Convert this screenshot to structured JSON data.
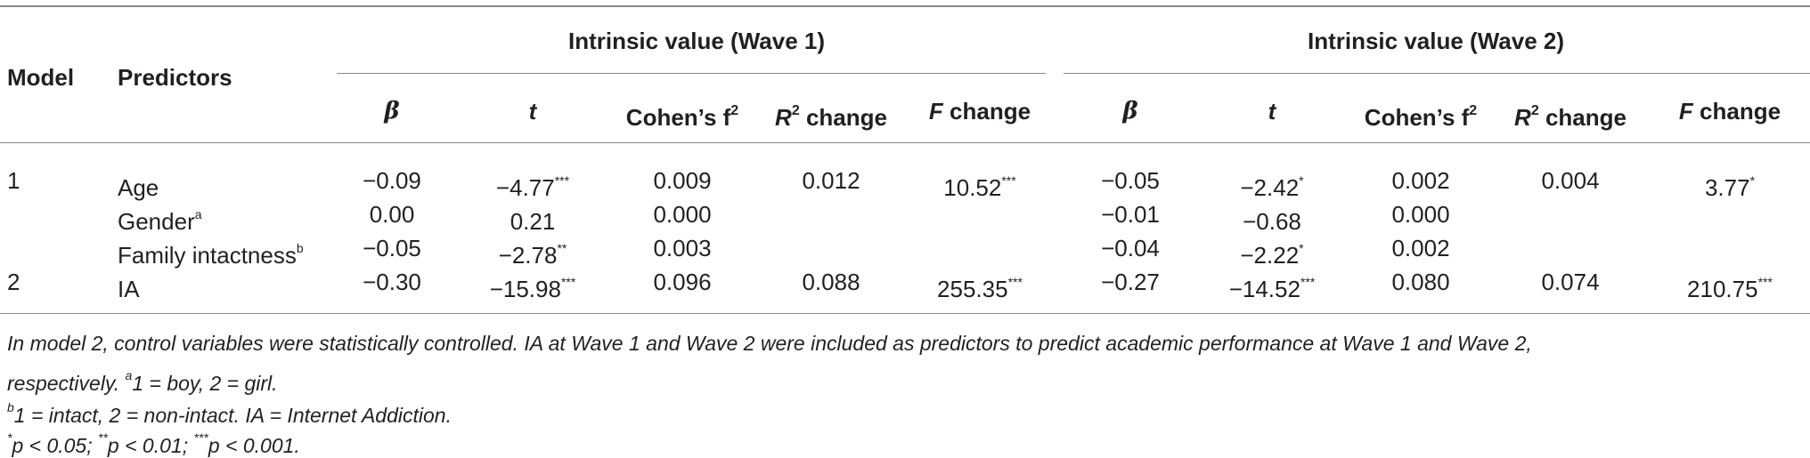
{
  "header": {
    "model": "Model",
    "predictors": "Predictors",
    "group1": "Intrinsic value (Wave 1)",
    "group2": "Intrinsic value (Wave 2)",
    "beta": "β",
    "t": "t",
    "cohen": "Cohen’s f",
    "cohen_sup": "2",
    "r2_r": "R",
    "r2_sup": "2",
    "r2_rest": " change",
    "f_f": "F",
    "f_rest": " change"
  },
  "rows": [
    {
      "model": "1",
      "predictor": "Age",
      "predictor_sup": "",
      "w1": {
        "beta": "−0.09",
        "t": "−4.77",
        "t_sup": "***",
        "f2": "0.009",
        "r2": "0.012",
        "fch": "10.52",
        "fch_sup": "***"
      },
      "w2": {
        "beta": "−0.05",
        "t": "−2.42",
        "t_sup": "*",
        "f2": "0.002",
        "r2": "0.004",
        "fch": "3.77",
        "fch_sup": "*"
      }
    },
    {
      "model": "",
      "predictor": "Gender",
      "predictor_sup": "a",
      "w1": {
        "beta": "0.00",
        "t": "0.21",
        "t_sup": "",
        "f2": "0.000",
        "r2": "",
        "fch": "",
        "fch_sup": ""
      },
      "w2": {
        "beta": "−0.01",
        "t": "−0.68",
        "t_sup": "",
        "f2": "0.000",
        "r2": "",
        "fch": "",
        "fch_sup": ""
      }
    },
    {
      "model": "",
      "predictor": "Family intactness",
      "predictor_sup": "b",
      "w1": {
        "beta": "−0.05",
        "t": "−2.78",
        "t_sup": "**",
        "f2": "0.003",
        "r2": "",
        "fch": "",
        "fch_sup": ""
      },
      "w2": {
        "beta": "−0.04",
        "t": "−2.22",
        "t_sup": "*",
        "f2": "0.002",
        "r2": "",
        "fch": "",
        "fch_sup": ""
      }
    },
    {
      "model": "2",
      "predictor": "IA",
      "predictor_sup": "",
      "w1": {
        "beta": "−0.30",
        "t": "−15.98",
        "t_sup": "***",
        "f2": "0.096",
        "r2": "0.088",
        "fch": "255.35",
        "fch_sup": "***"
      },
      "w2": {
        "beta": "−0.27",
        "t": "−14.52",
        "t_sup": "***",
        "f2": "0.080",
        "r2": "0.074",
        "fch": "210.75",
        "fch_sup": "***"
      }
    }
  ],
  "notes": {
    "line1": "In model 2, control variables were statistically controlled. IA at Wave 1 and Wave 2 were included as predictors to predict academic performance at Wave 1 and Wave 2,",
    "line2_text": "respectively. ",
    "line2_sup": "a",
    "line2_rest": "1 = boy, 2 = girl.",
    "line3_sup": "b",
    "line3_rest": "1 = intact, 2 = non-intact. IA = Internet Addiction.",
    "line4_sup1": "*",
    "line4_a": "p < 0.05; ",
    "line4_sup2": "**",
    "line4_b": "p < 0.01; ",
    "line4_sup3": "***",
    "line4_c": "p < 0.001."
  }
}
